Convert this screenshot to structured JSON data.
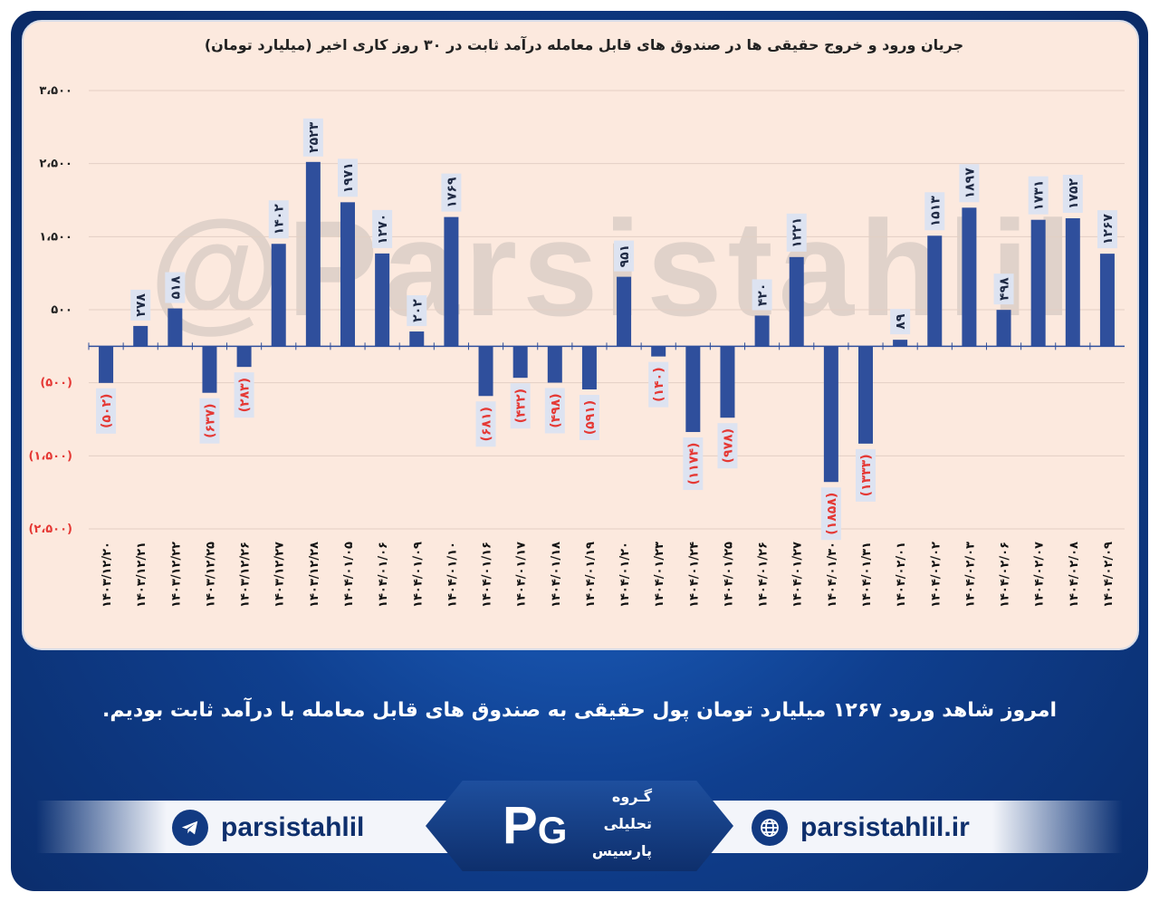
{
  "chart_data": {
    "type": "bar",
    "title": "جریان ورود و خروج حقیقی ها در صندوق های قابل معامله درآمد ثابت در ۳۰ روز کاری اخیر (میلیارد تومان)",
    "ylim": [
      -2500,
      3500
    ],
    "yticks": [
      3500,
      2500,
      1500,
      500,
      -500,
      -1500,
      -2500
    ],
    "ytick_labels": [
      "۳،۵۰۰",
      "۲،۵۰۰",
      "۱،۵۰۰",
      "۵۰۰",
      "(۵۰۰)",
      "(۱،۵۰۰)",
      "(۲،۵۰۰)"
    ],
    "grid": true,
    "categories": [
      "۱۴۰۳/۱۲/۲۰",
      "۱۴۰۳/۱۲/۲۱",
      "۱۴۰۳/۱۲/۲۲",
      "۱۴۰۳/۱۲/۲۵",
      "۱۴۰۳/۱۲/۲۶",
      "۱۴۰۳/۱۲/۲۷",
      "۱۴۰۳/۱۲/۲۸",
      "۱۴۰۴/۰۱/۰۵",
      "۱۴۰۴/۰۱/۰۶",
      "۱۴۰۴/۰۱/۰۹",
      "۱۴۰۴/۰۱/۱۰",
      "۱۴۰۴/۰۱/۱۶",
      "۱۴۰۴/۰۱/۱۷",
      "۱۴۰۴/۰۱/۱۸",
      "۱۴۰۴/۰۱/۱۹",
      "۱۴۰۴/۰۱/۲۰",
      "۱۴۰۴/۰۱/۲۳",
      "۱۴۰۴/۰۱/۲۴",
      "۱۴۰۴/۰۱/۲۵",
      "۱۴۰۴/۰۱/۲۶",
      "۱۴۰۴/۰۱/۲۷",
      "۱۴۰۴/۰۱/۳۰",
      "۱۴۰۴/۰۱/۳۱",
      "۱۴۰۴/۰۲/۰۱",
      "۱۴۰۴/۰۲/۰۲",
      "۱۴۰۴/۰۲/۰۳",
      "۱۴۰۴/۰۲/۰۶",
      "۱۴۰۴/۰۲/۰۷",
      "۱۴۰۴/۰۲/۰۸",
      "۱۴۰۴/۰۲/۰۹"
    ],
    "values": [
      -502,
      278,
      518,
      -637,
      -283,
      1402,
      2523,
      1971,
      1270,
      202,
      1769,
      -681,
      -432,
      -498,
      -591,
      951,
      -140,
      -1174,
      -978,
      420,
      1221,
      -1858,
      -1333,
      89,
      1513,
      1897,
      498,
      1731,
      1752,
      1267
    ],
    "data_labels": [
      "(۵۰۲)",
      "۲۷۸",
      "۵۱۸",
      "(۶۳۷)",
      "(۲۸۳)",
      "۱۴۰۲",
      "۲۵۲۳",
      "۱۹۷۱",
      "۱۲۷۰",
      "۲۰۲",
      "۱۷۶۹",
      "(۶۸۱)",
      "(۴۳۲)",
      "(۴۹۸)",
      "(۵۹۱)",
      "۹۵۱",
      "(۱۴۰)",
      "(۱۱۷۴)",
      "(۹۷۸)",
      "۴۲۰",
      "۱۲۲۱",
      "(۱۸۵۸)",
      "(۱۳۳۳)",
      "۸۹",
      "۱۵۱۳",
      "۱۸۹۷",
      "۴۹۸",
      "۱۷۳۱",
      "۱۷۵۲",
      "۱۲۶۷"
    ],
    "bar_color": "#2f4f9c",
    "negative_label_color": "#e53935",
    "positive_label_color": "#1f2a44"
  },
  "watermark": "@Parsistahlil",
  "footer": {
    "message": "امروز شاهد ورود ۱۲۶۷ میلیارد تومان پول حقیقی به صندوق های قابل معامله با درآمد ثابت بودیم.",
    "telegram_handle": "parsistahlil",
    "website": "parsistahlil.ir",
    "logo_lines": [
      "گـروه",
      "تحلیلی",
      "پارسیس"
    ],
    "telegram_icon": "telegram-icon",
    "globe_icon": "globe-icon"
  }
}
